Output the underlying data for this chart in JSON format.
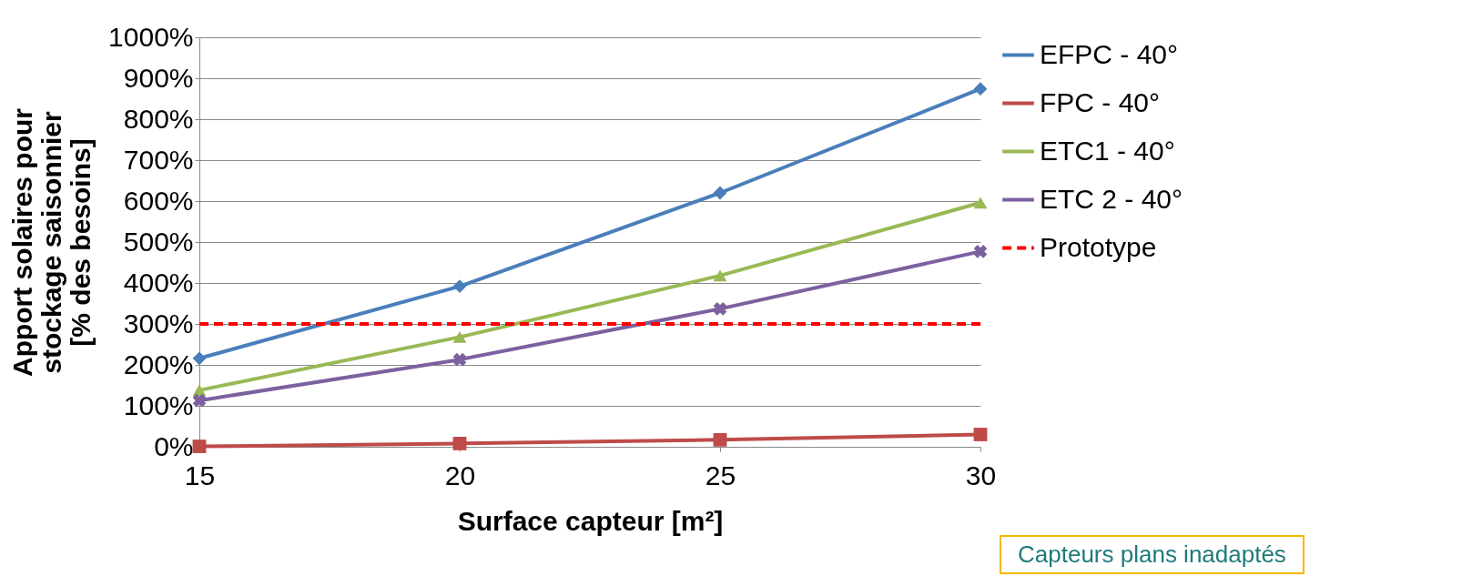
{
  "chart_data": {
    "type": "line",
    "xlabel": "Surface capteur [m²]",
    "ylabel": "Apport solaires pour\nstockage saisonnier\n[% des besoins]",
    "x": [
      15,
      20,
      25,
      30
    ],
    "series": [
      {
        "name": "EFPC - 40°",
        "color": "#4a7ebb",
        "marker": "diamond",
        "values": [
          216,
          392,
          620,
          874
        ]
      },
      {
        "name": "FPC - 40°",
        "color": "#be4b48",
        "marker": "square",
        "values": [
          1,
          8,
          17,
          30
        ]
      },
      {
        "name": "ETC1 - 40°",
        "color": "#98b954",
        "marker": "triangle",
        "values": [
          138,
          268,
          418,
          596
        ]
      },
      {
        "name": "ETC 2 - 40°",
        "color": "#7d60a0",
        "marker": "cross",
        "values": [
          113,
          213,
          337,
          477
        ]
      },
      {
        "name": "Prototype",
        "color": "#ff0000",
        "marker": "none",
        "line_style": "dashed",
        "values": [
          300,
          300,
          300,
          300
        ]
      }
    ],
    "xlim": [
      15,
      30
    ],
    "xticks": [
      15,
      20,
      25,
      30
    ],
    "ylim": [
      0,
      1000
    ],
    "yticks": [
      {
        "value": 0,
        "label": "0%"
      },
      {
        "value": 100,
        "label": "100%"
      },
      {
        "value": 200,
        "label": "200%"
      },
      {
        "value": 300,
        "label": "300%"
      },
      {
        "value": 400,
        "label": "400%"
      },
      {
        "value": 500,
        "label": "500%"
      },
      {
        "value": 600,
        "label": "600%"
      },
      {
        "value": 700,
        "label": "700%"
      },
      {
        "value": 800,
        "label": "800%"
      },
      {
        "value": 900,
        "label": "900%"
      },
      {
        "value": 1000,
        "label": "1000%"
      }
    ],
    "grid": "y",
    "legend": "right",
    "annotations": [
      "Capteurs plans inadaptés"
    ]
  }
}
